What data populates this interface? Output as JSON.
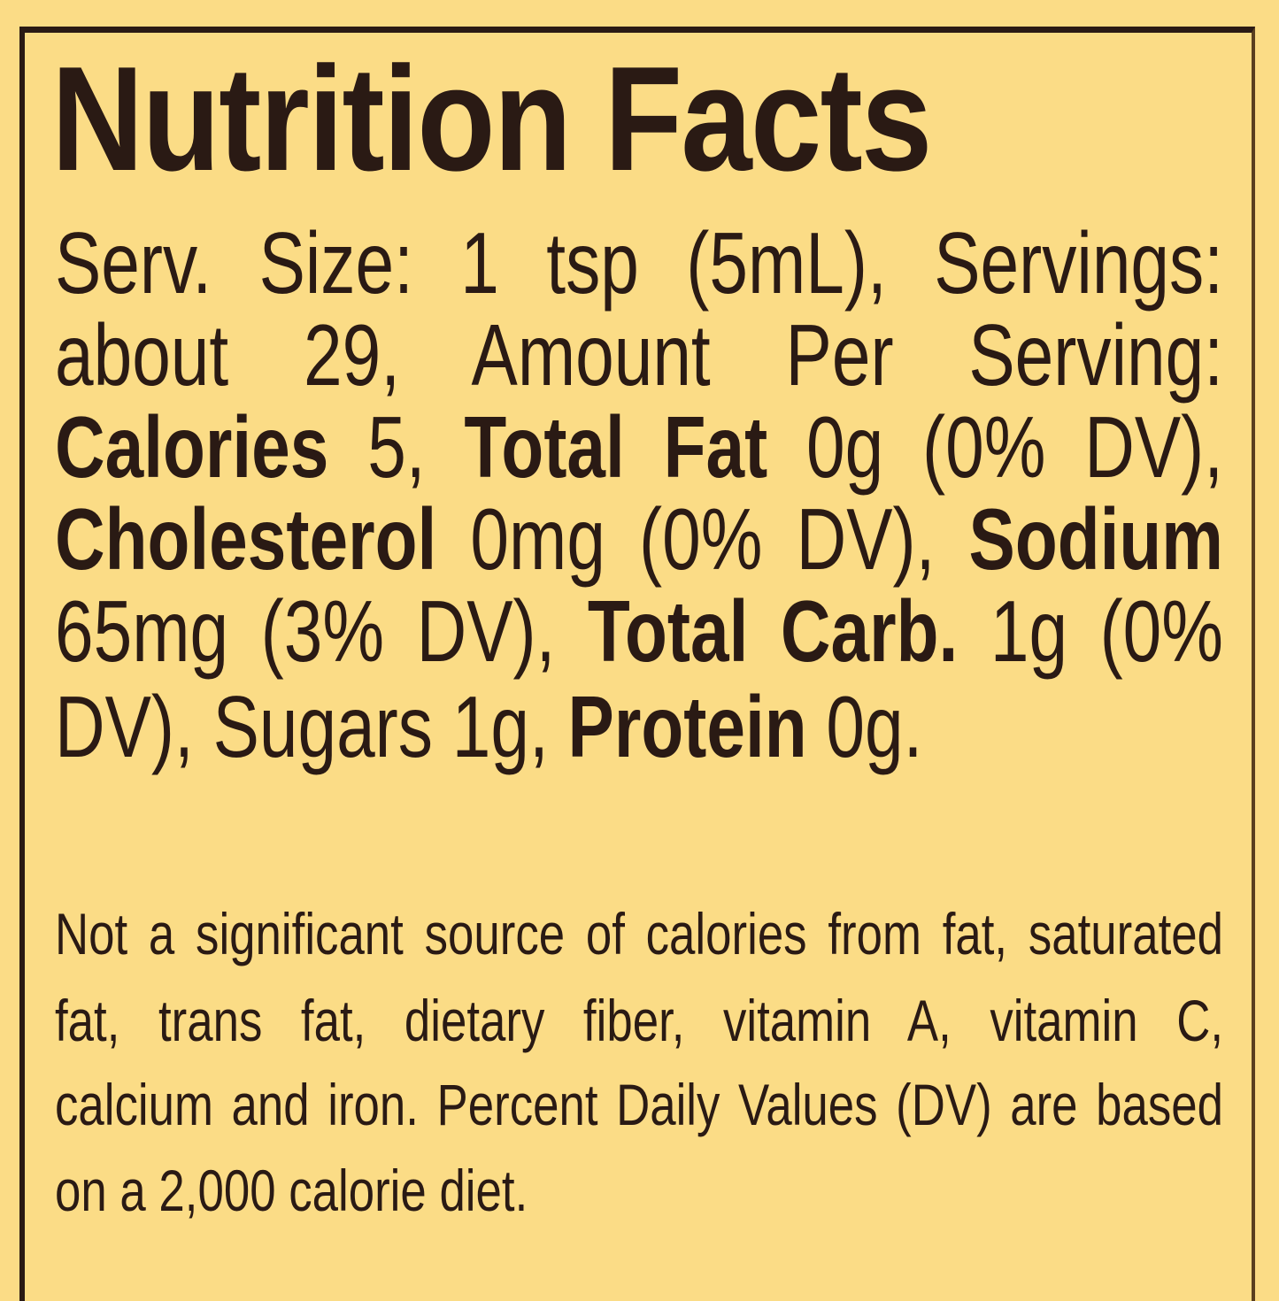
{
  "label": {
    "title": "Nutrition Facts",
    "colors": {
      "background": "#fbdc86",
      "text": "#2a1a14"
    },
    "main_lines": [
      [
        {
          "t": "Serv. Size: 1 tsp (5mL), Servings:",
          "b": false
        }
      ],
      [
        {
          "t": "about 29, Amount Per Serving:",
          "b": false
        }
      ],
      [
        {
          "t": "Calories",
          "b": true
        },
        {
          "t": " 5, ",
          "b": false
        },
        {
          "t": "Total Fat",
          "b": true
        },
        {
          "t": " 0g (0% DV),",
          "b": false
        }
      ],
      [
        {
          "t": "Cholesterol",
          "b": true
        },
        {
          "t": " 0mg (0% DV), ",
          "b": false
        },
        {
          "t": "Sodium",
          "b": true
        }
      ],
      [
        {
          "t": "65mg (3% DV), ",
          "b": false
        },
        {
          "t": "Total Carb.",
          "b": true
        },
        {
          "t": " 1g (0%",
          "b": false
        }
      ],
      [
        {
          "t": "DV), Sugars 1g, ",
          "b": false
        },
        {
          "t": "Protein",
          "b": true
        },
        {
          "t": " 0g.",
          "b": false
        }
      ]
    ],
    "footnote_lines": [
      "Not a significant source of calories from fat, saturated",
      "fat, trans fat, dietary fiber, vitamin A, vitamin C,",
      "calcium and iron. Percent Daily Values (DV) are based",
      "on a 2,000 calorie diet."
    ]
  }
}
